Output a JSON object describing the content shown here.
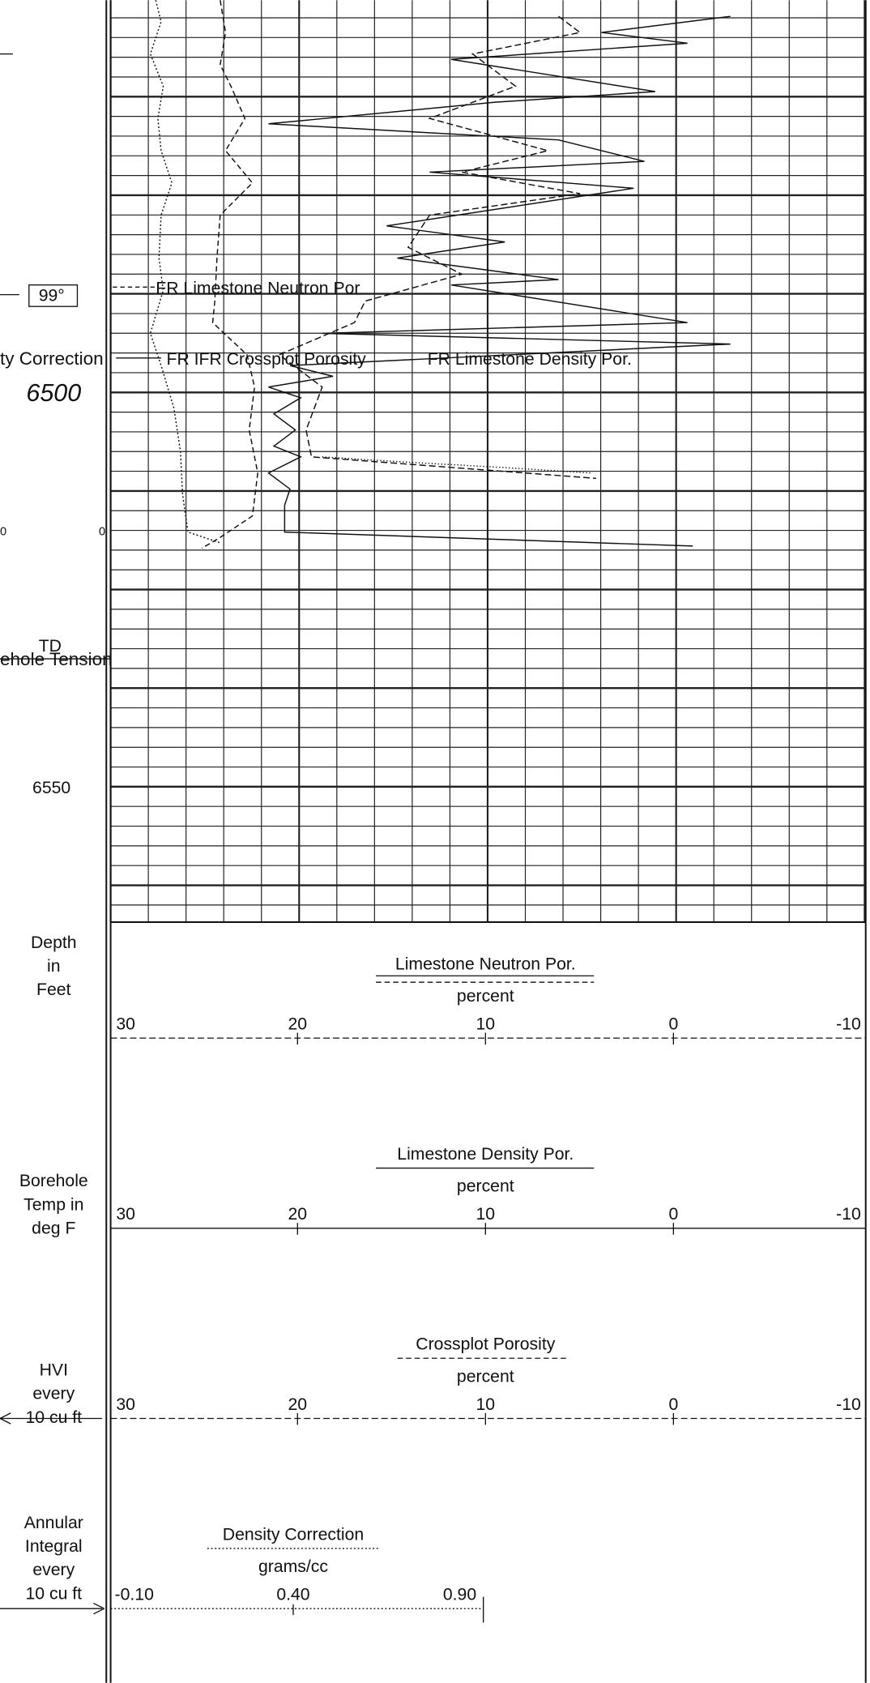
{
  "depth_track": {
    "temperature": "99°",
    "curve_name": "ty Correction",
    "depth_6500": "6500",
    "left_zero": "0",
    "right_zero": "0",
    "td": "TD",
    "tension": "ehole Tension",
    "depth_6550": "6550"
  },
  "curve_labels": {
    "neutron": "FR Limestone Neutron Por",
    "crossplot": "FR IFR Crossplot Porosity",
    "density": "FR Limestone Density Por."
  },
  "header": {
    "depth": [
      "Depth",
      "in",
      "Feet"
    ],
    "temp": [
      "Borehole",
      "Temp in",
      "deg F"
    ],
    "hvi": [
      "HVI",
      "every",
      "10 cu ft"
    ],
    "annular": [
      "Annular",
      "Integral",
      "every",
      "10 cu ft"
    ]
  },
  "scales": [
    {
      "name": "Limestone Neutron Por.",
      "unit": "percent",
      "ticks": [
        "30",
        "20",
        "10",
        "0",
        "-10"
      ]
    },
    {
      "name": "Limestone Density Por.",
      "unit": "percent",
      "ticks": [
        "30",
        "20",
        "10",
        "0",
        "-10"
      ]
    },
    {
      "name": "Crossplot Porosity",
      "unit": "percent",
      "ticks": [
        "30",
        "20",
        "10",
        "0",
        "-10"
      ]
    },
    {
      "name": "Density Correction",
      "unit": "grams/cc",
      "ticks": [
        "-0.10",
        "0.40",
        "0.90"
      ]
    }
  ]
}
